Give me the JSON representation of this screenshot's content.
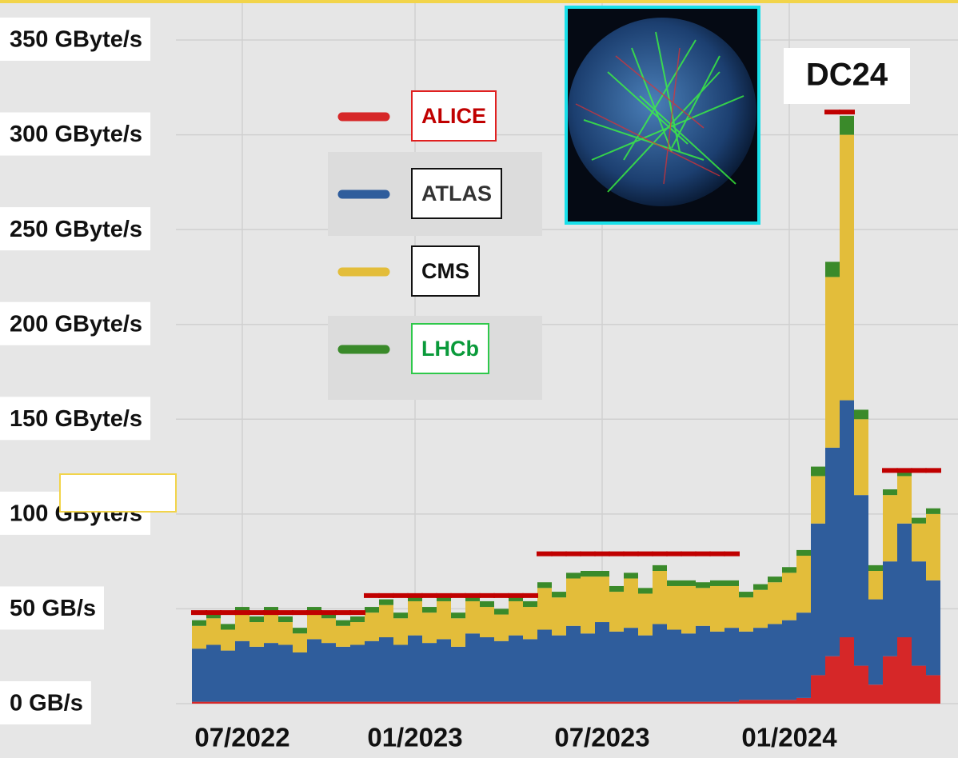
{
  "chart_data": {
    "type": "stacked-bar",
    "annotation": "DC24",
    "categories": [
      null,
      null,
      null,
      "07/2022",
      null,
      null,
      null,
      null,
      null,
      null,
      null,
      null,
      null,
      null,
      null,
      "01/2023",
      null,
      null,
      null,
      null,
      null,
      null,
      null,
      null,
      null,
      null,
      null,
      null,
      "07/2023",
      null,
      null,
      null,
      null,
      null,
      null,
      null,
      null,
      null,
      null,
      null,
      null,
      "01/2024",
      null,
      null,
      null,
      null,
      null,
      null,
      null,
      null,
      null,
      null
    ],
    "series": [
      {
        "name": "ALICE",
        "color": "#d62728",
        "values": [
          1,
          1,
          1,
          1,
          1,
          1,
          1,
          1,
          1,
          1,
          1,
          1,
          1,
          1,
          1,
          1,
          1,
          1,
          1,
          1,
          1,
          1,
          1,
          1,
          1,
          1,
          1,
          1,
          1,
          1,
          1,
          1,
          1,
          1,
          1,
          1,
          1,
          1,
          2,
          2,
          2,
          2,
          3,
          15,
          25,
          35,
          20,
          10,
          25,
          35,
          20,
          15
        ]
      },
      {
        "name": "ATLAS",
        "color": "#2f5d9c",
        "values": [
          28,
          30,
          27,
          32,
          29,
          31,
          30,
          26,
          33,
          31,
          29,
          30,
          32,
          34,
          30,
          35,
          31,
          33,
          29,
          36,
          34,
          32,
          35,
          33,
          38,
          35,
          40,
          36,
          42,
          37,
          39,
          35,
          41,
          38,
          36,
          40,
          37,
          39,
          36,
          38,
          40,
          42,
          45,
          80,
          110,
          125,
          90,
          45,
          50,
          60,
          55,
          50
        ]
      },
      {
        "name": "CMS",
        "color": "#e3bd3a",
        "values": [
          12,
          14,
          11,
          15,
          13,
          16,
          12,
          10,
          14,
          13,
          11,
          12,
          15,
          17,
          14,
          18,
          16,
          20,
          15,
          17,
          16,
          14,
          18,
          17,
          22,
          20,
          25,
          30,
          24,
          21,
          26,
          22,
          28,
          23,
          25,
          20,
          24,
          22,
          18,
          20,
          22,
          25,
          30,
          25,
          90,
          140,
          40,
          15,
          35,
          25,
          20,
          35
        ]
      },
      {
        "name": "LHCb",
        "color": "#3a8a2a",
        "values": [
          3,
          3,
          3,
          3,
          3,
          3,
          3,
          3,
          3,
          3,
          3,
          3,
          3,
          3,
          3,
          3,
          3,
          3,
          3,
          3,
          3,
          3,
          3,
          3,
          3,
          3,
          3,
          3,
          3,
          3,
          3,
          3,
          3,
          3,
          3,
          3,
          3,
          3,
          3,
          3,
          3,
          3,
          3,
          5,
          8,
          10,
          5,
          3,
          3,
          3,
          3,
          3
        ]
      }
    ],
    "reference_line": {
      "color": "#c00000",
      "values": [
        48,
        48,
        48,
        48,
        48,
        48,
        48,
        48,
        48,
        48,
        48,
        48,
        57,
        57,
        57,
        57,
        57,
        57,
        57,
        57,
        57,
        57,
        57,
        57,
        79,
        79,
        79,
        79,
        79,
        79,
        79,
        79,
        79,
        79,
        79,
        79,
        79,
        79,
        null,
        null,
        null,
        null,
        null,
        null,
        312,
        312,
        null,
        null,
        123,
        123,
        123,
        123
      ]
    },
    "ylim": [
      0,
      350
    ],
    "yticks": [
      {
        "value": 0,
        "label": "0 GB/s"
      },
      {
        "value": 50,
        "label": "50 GB/s"
      },
      {
        "value": 100,
        "label": "100 GByte/s"
      },
      {
        "value": 150,
        "label": "150 GByte/s"
      },
      {
        "value": 200,
        "label": "200 GByte/s"
      },
      {
        "value": 250,
        "label": "250 GByte/s"
      },
      {
        "value": 300,
        "label": "300 GByte/s"
      },
      {
        "value": 350,
        "label": "350 GByte/s"
      }
    ],
    "grid": true
  }
}
